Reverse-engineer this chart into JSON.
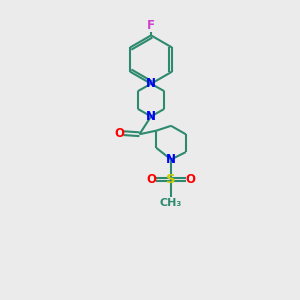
{
  "bg_color": "#ebebeb",
  "bond_color": "#2d8a6e",
  "N_color": "#0000ff",
  "O_color": "#ff0000",
  "S_color": "#cccc00",
  "F_color": "#cc44cc",
  "line_width": 1.5,
  "font_size": 8.5,
  "xlim": [
    0,
    10
  ],
  "ylim": [
    0,
    14
  ]
}
